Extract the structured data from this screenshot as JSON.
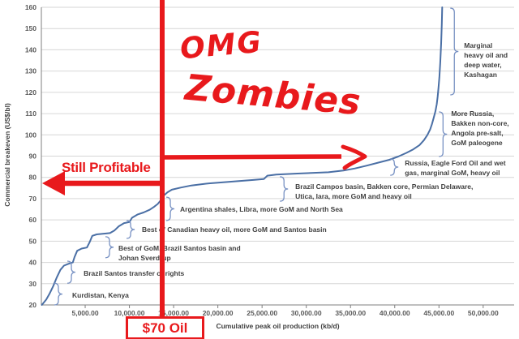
{
  "chart_data": {
    "type": "line",
    "title": "",
    "xlabel": "Cumulative peak oil production (kb/d)",
    "ylabel": "Commercial breakeven (US$/bl)",
    "xlim": [
      0,
      53500
    ],
    "ylim": [
      20,
      160
    ],
    "grid": "horizontal",
    "legend": "none",
    "line_color": "#4a6fa5",
    "brace_color": "#7a93c4",
    "series": [
      {
        "name": "global-oil-supply-cost-curve",
        "points": [
          [
            100,
            20
          ],
          [
            600,
            22.5
          ],
          [
            1000,
            25.5
          ],
          [
            1400,
            29
          ],
          [
            1800,
            33
          ],
          [
            2200,
            36.5
          ],
          [
            2600,
            38.5
          ],
          [
            3200,
            39.5
          ],
          [
            3600,
            40
          ],
          [
            3800,
            42.5
          ],
          [
            4100,
            45.5
          ],
          [
            4600,
            46.5
          ],
          [
            5200,
            47
          ],
          [
            5500,
            49.5
          ],
          [
            5800,
            52.5
          ],
          [
            6300,
            53.2
          ],
          [
            7800,
            53.8
          ],
          [
            8300,
            55
          ],
          [
            8800,
            57
          ],
          [
            9400,
            58.5
          ],
          [
            10000,
            59
          ],
          [
            10300,
            61
          ],
          [
            10900,
            62.5
          ],
          [
            11600,
            63.5
          ],
          [
            12300,
            64.8
          ],
          [
            12800,
            66.2
          ],
          [
            13200,
            67.5
          ],
          [
            13600,
            69.5
          ],
          [
            13900,
            71.5
          ],
          [
            14300,
            73
          ],
          [
            14800,
            74.2
          ],
          [
            15800,
            75.2
          ],
          [
            17000,
            76.2
          ],
          [
            19000,
            77.2
          ],
          [
            21500,
            78
          ],
          [
            24000,
            78.8
          ],
          [
            25200,
            79.2
          ],
          [
            25600,
            80.8
          ],
          [
            26600,
            81.3
          ],
          [
            29000,
            81.8
          ],
          [
            32500,
            82.4
          ],
          [
            34200,
            83.2
          ],
          [
            35500,
            84.2
          ],
          [
            36800,
            85.5
          ],
          [
            38200,
            87
          ],
          [
            39400,
            88.3
          ],
          [
            40400,
            89.8
          ],
          [
            41300,
            91.5
          ],
          [
            42100,
            93.2
          ],
          [
            42800,
            95.2
          ],
          [
            43300,
            97.5
          ],
          [
            43700,
            100
          ],
          [
            44000,
            102.5
          ],
          [
            44200,
            105
          ],
          [
            44400,
            108
          ],
          [
            44600,
            111
          ],
          [
            44750,
            114.5
          ],
          [
            44850,
            118
          ],
          [
            44950,
            122
          ],
          [
            45050,
            127
          ],
          [
            45150,
            134
          ],
          [
            45250,
            143
          ],
          [
            45320,
            152
          ],
          [
            45370,
            160
          ]
        ]
      }
    ],
    "x_ticks": [
      {
        "v": 5000,
        "label": "5,000.00"
      },
      {
        "v": 10000,
        "label": "10,000.00"
      },
      {
        "v": 15000,
        "label": "15,000.00"
      },
      {
        "v": 20000,
        "label": "20,000.00"
      },
      {
        "v": 25000,
        "label": "25,000.00"
      },
      {
        "v": 30000,
        "label": "30,000.00"
      },
      {
        "v": 35000,
        "label": "35,000.00"
      },
      {
        "v": 40000,
        "label": "40,000.00"
      },
      {
        "v": 45000,
        "label": "45,000.00"
      },
      {
        "v": 50000,
        "label": "50,000.00"
      }
    ],
    "y_ticks": [
      20,
      30,
      40,
      50,
      60,
      70,
      80,
      90,
      100,
      110,
      120,
      130,
      140,
      150,
      160
    ],
    "annotations": [
      {
        "lines": [
          "Kurdistan, Kenya"
        ],
        "brace": {
          "x_kb": 1970,
          "from": 20,
          "to": 30.2
        },
        "label": {
          "x_kb": 3530,
          "y_val": 26.5
        }
      },
      {
        "lines": [
          "Brazil Santos transfer of rights"
        ],
        "brace": {
          "x_kb": 3440,
          "from": 30.2,
          "to": 40.6
        },
        "label": {
          "x_kb": 4820,
          "y_val": 36.8
        }
      },
      {
        "lines": [
          "Best of GoM, Brazil Santos basin and",
          "Johan Sverdrup"
        ],
        "brace": {
          "x_kb": 7750,
          "from": 42.2,
          "to": 52.1
        },
        "label": {
          "x_kb": 8760,
          "y_val": 48.6
        }
      },
      {
        "lines": [
          "Best of Canadian heavy oil, more GoM and Santos basin"
        ],
        "brace": {
          "x_kb": 10140,
          "from": 51.3,
          "to": 59.7
        },
        "label": {
          "x_kb": 11420,
          "y_val": 57.2
        }
      },
      {
        "lines": [
          "Argentina shales, Libra, more GoM and North Sea"
        ],
        "brace": {
          "x_kb": 14630,
          "from": 59.7,
          "to": 70.7
        },
        "label": {
          "x_kb": 15730,
          "y_val": 67.0
        }
      },
      {
        "lines": [
          "Brazil Campos basin, Bakken core, Permian Delaware,",
          "Utica, Iara, more GoM and heavy oil"
        ],
        "brace": {
          "x_kb": 27480,
          "from": 68.8,
          "to": 80.3
        },
        "label": {
          "x_kb": 28760,
          "y_val": 77.6
        }
      },
      {
        "lines": [
          "Russia, Eagle Ford Oil and wet",
          "gas, marginal GoM, heavy oil"
        ],
        "brace": {
          "x_kb": 39950,
          "from": 81.0,
          "to": 88.7
        },
        "label": {
          "x_kb": 41150,
          "y_val": 88.7
        }
      },
      {
        "lines": [
          "More Russia,",
          "Bakken non-core,",
          "Angola pre-salt,",
          "GoM paleogene"
        ],
        "brace": {
          "x_kb": 45460,
          "from": 89.8,
          "to": 110.8
        },
        "label": {
          "x_kb": 46380,
          "y_val": 112.0
        }
      },
      {
        "lines": [
          "Marginal",
          "heavy oil and",
          "deep water,",
          "Kashagan"
        ],
        "brace": {
          "x_kb": 46740,
          "from": 118.8,
          "to": 159.6
        },
        "label": {
          "x_kb": 47840,
          "y_val": 144.0
        }
      }
    ]
  },
  "overlay": {
    "color": "#e8191c",
    "vertical_line_label": "$70 Oil",
    "left_arrow_label": "Still Profitable",
    "handwriting": [
      "OMG",
      "Zombies"
    ]
  }
}
